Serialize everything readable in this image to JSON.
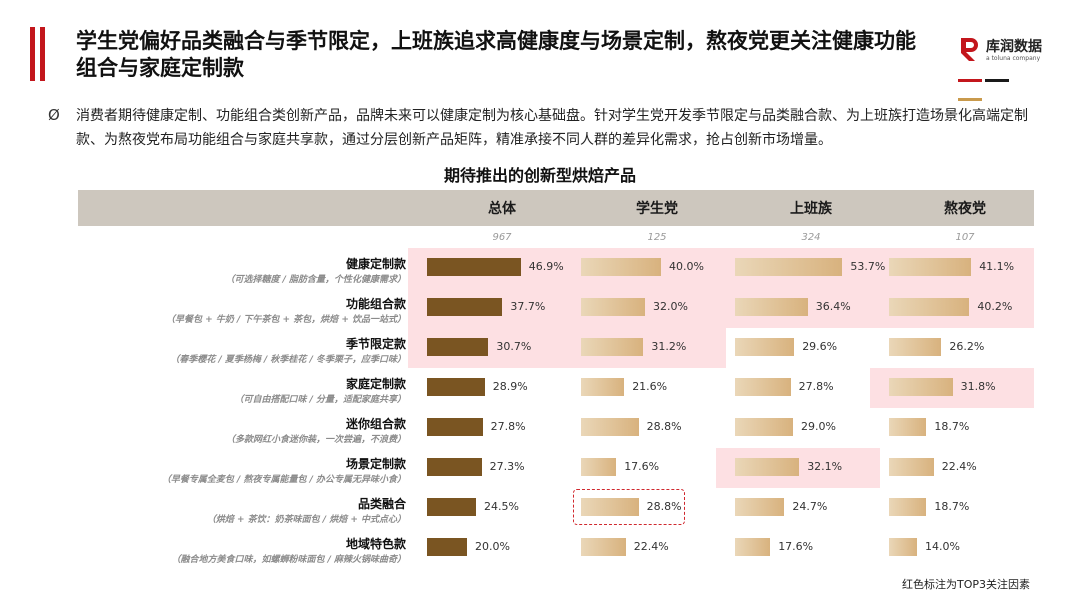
{
  "title": "学生党偏好品类融合与季节限定，上班族追求高健康度与场景定制，熬夜党更关注健康功能组合与家庭定制款",
  "logo": {
    "name": "库润数据",
    "tagline": "a toluna company",
    "colors": [
      "#c3161c",
      "#1a1a1a",
      "#c99a4c"
    ]
  },
  "bullet_symbol": "Ø",
  "summary": "消费者期待健康定制、功能组合类创新产品，品牌未来可以健康定制为核心基础盘。针对学生党开发季节限定与品类融合款、为上班族打造场景化高端定制款、为熬夜党布局功能组合与家庭共享款，通过分层创新产品矩阵，精准承接不同人群的差异化需求，抢占创新市场增量。",
  "footnote": "红色标注为TOP3关注因素",
  "colors": {
    "accent": "#c3161c",
    "dark_bar": "#7a5522",
    "light_bar": "#d8b27e",
    "highlight": "#fde0e3",
    "header": "#cdc7be"
  },
  "chart_data": {
    "type": "bar",
    "title": "期待推出的创新型烘焙产品",
    "columns": [
      "总体",
      "学生党",
      "上班族",
      "熬夜党"
    ],
    "sample_sizes": [
      "967",
      "125",
      "324",
      "107"
    ],
    "unit": "%",
    "categories": [
      {
        "name": "健康定制款",
        "desc": "（可选择糖度 / 脂肪含量，个性化健康需求）"
      },
      {
        "name": "功能组合款",
        "desc": "（早餐包 + 牛奶 / 下午茶包 + 茶包，烘焙 + 饮品一站式）"
      },
      {
        "name": "季节限定款",
        "desc": "（春季樱花 / 夏季杨梅 / 秋季桂花 / 冬季栗子，应季口味）"
      },
      {
        "name": "家庭定制款",
        "desc": "（可自由搭配口味 / 分量，适配家庭共享）"
      },
      {
        "name": "迷你组合款",
        "desc": "（多款网红小食迷你装，一次尝遍，不浪费）"
      },
      {
        "name": "场景定制款",
        "desc": "（早餐专属全麦包 / 熬夜专属能量包 / 办公专属无异味小食）"
      },
      {
        "name": "品类融合",
        "desc": "（烘焙 + 茶饮：奶茶味面包 / 烘焙 + 中式点心）"
      },
      {
        "name": "地域特色款",
        "desc": "（融合地方美食口味，如螺蛳粉味面包 / 麻辣火锅味曲奇）"
      }
    ],
    "series": [
      {
        "name": "总体",
        "values": [
          46.9,
          37.7,
          30.7,
          28.9,
          27.8,
          27.3,
          24.5,
          20.0
        ],
        "labels": [
          "46.9%",
          "37.7%",
          "30.7%",
          "28.9%",
          "27.8%",
          "27.3%",
          "24.5%",
          "20.0%"
        ],
        "top3": [
          0,
          1,
          2
        ]
      },
      {
        "name": "学生党",
        "values": [
          40.0,
          32.0,
          31.2,
          21.6,
          28.8,
          17.6,
          28.8,
          22.4
        ],
        "labels": [
          "40.0%",
          "32.0%",
          "31.2%",
          "21.6%",
          "28.8%",
          "17.6%",
          "28.8%",
          "22.4%"
        ],
        "top3": [
          0,
          1,
          2
        ],
        "dashed": [
          6
        ]
      },
      {
        "name": "上班族",
        "values": [
          53.7,
          36.4,
          29.6,
          27.8,
          29.0,
          32.1,
          24.7,
          17.6
        ],
        "labels": [
          "53.7%",
          "36.4%",
          "29.6%",
          "27.8%",
          "29.0%",
          "32.1%",
          "24.7%",
          "17.6%"
        ],
        "top3": [
          0,
          1,
          5
        ]
      },
      {
        "name": "熬夜党",
        "values": [
          41.1,
          40.2,
          26.2,
          31.8,
          18.7,
          22.4,
          18.7,
          14.0
        ],
        "labels": [
          "41.1%",
          "40.2%",
          "26.2%",
          "31.8%",
          "18.7%",
          "22.4%",
          "18.7%",
          "14.0%"
        ],
        "top3": [
          0,
          1,
          3
        ]
      }
    ]
  }
}
